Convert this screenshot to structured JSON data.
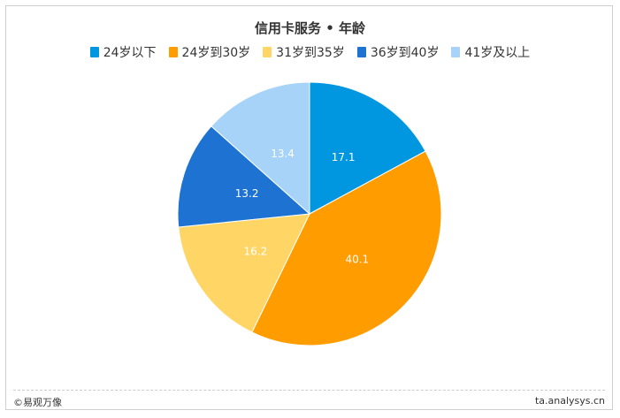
{
  "chart_data": {
    "type": "pie",
    "title": "信用卡服务 • 年龄",
    "categories": [
      "24岁以下",
      "24岁到30岁",
      "31岁到35岁",
      "36岁到40岁",
      "41岁及以上"
    ],
    "values": [
      17.1,
      40.1,
      16.2,
      13.2,
      13.4
    ],
    "colors": [
      "#0097E0",
      "#FF9C00",
      "#FFD666",
      "#1D72D2",
      "#A6D3F7"
    ],
    "label_colors": [
      "#ffffff",
      "#ffffff",
      "#ffffff",
      "#ffffff",
      "#ffffff"
    ],
    "start_angle_deg": 0,
    "direction": "clockwise",
    "legend_position": "top"
  },
  "footer": {
    "brand": "©易观万像",
    "site": "ta.analysys.cn"
  }
}
